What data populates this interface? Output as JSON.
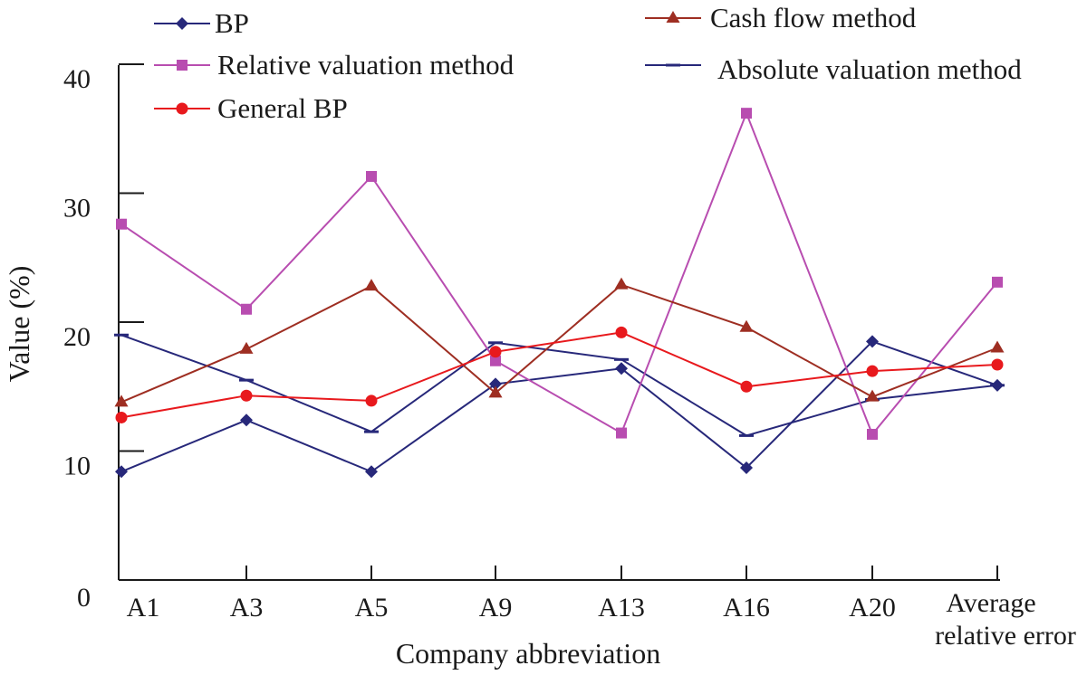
{
  "chart_data": {
    "type": "line",
    "title": "",
    "xlabel": "Company abbreviation",
    "ylabel": "Value (%)",
    "ylim": [
      0,
      40
    ],
    "yticks": [
      0,
      10,
      20,
      30,
      40
    ],
    "grid": false,
    "categories": [
      "A1",
      "A3",
      "A5",
      "A9",
      "A13",
      "A16",
      "A20",
      "Average relative error"
    ],
    "series": [
      {
        "name": "BP",
        "color": "#27287a",
        "marker": "diamond",
        "values": [
          8.4,
          12.4,
          8.4,
          15.2,
          16.4,
          8.7,
          18.5,
          15.1
        ]
      },
      {
        "name": "Relative valuation method",
        "color": "#b84db0",
        "marker": "square",
        "values": [
          27.6,
          21.0,
          31.3,
          17.0,
          11.4,
          36.2,
          11.3,
          23.1
        ]
      },
      {
        "name": "General BP",
        "color": "#e8191d",
        "marker": "circle",
        "values": [
          12.6,
          14.3,
          13.9,
          17.7,
          19.2,
          15.0,
          16.2,
          16.7
        ]
      },
      {
        "name": "Cash flow method",
        "color": "#9e2e22",
        "marker": "triangle",
        "values": [
          13.8,
          17.9,
          22.8,
          14.5,
          22.9,
          19.6,
          14.2,
          18.0
        ]
      },
      {
        "name": "Absolute valuation method",
        "color": "#27287a",
        "marker": "dash",
        "values": [
          19.0,
          15.5,
          11.5,
          18.4,
          17.1,
          11.2,
          14.0,
          15.1
        ]
      }
    ]
  }
}
